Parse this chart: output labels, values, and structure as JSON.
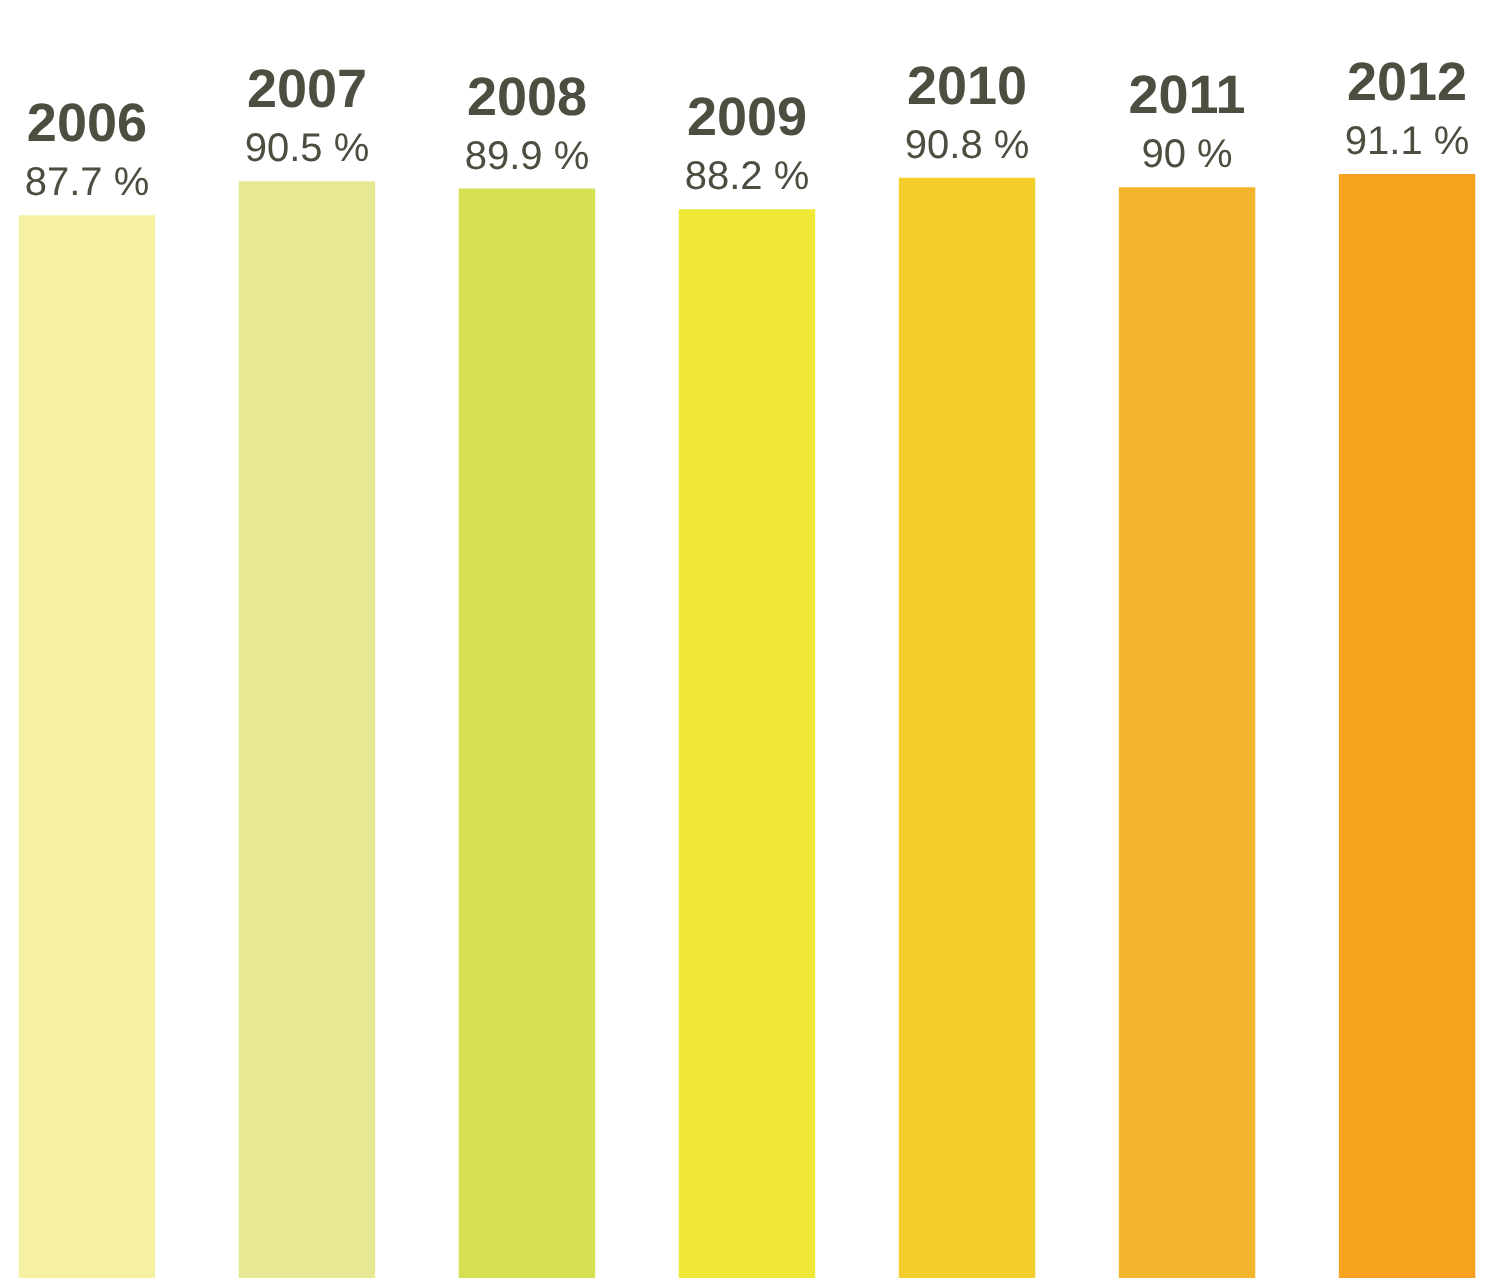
{
  "chart_data": {
    "type": "bar",
    "categories": [
      "2006",
      "2007",
      "2008",
      "2009",
      "2010",
      "2011",
      "2012"
    ],
    "values": [
      87.7,
      90.5,
      89.9,
      88.2,
      90.8,
      90,
      91.1
    ],
    "value_labels": [
      "87.7 %",
      "90.5 %",
      "89.9 %",
      "88.2 %",
      "90.8 %",
      "90 %",
      "91.1 %"
    ],
    "colors": [
      "#f6f1a2",
      "#e6e893",
      "#d5df52",
      "#efe836",
      "#f2cd2b",
      "#f3b52b",
      "#f7a21f"
    ]
  }
}
